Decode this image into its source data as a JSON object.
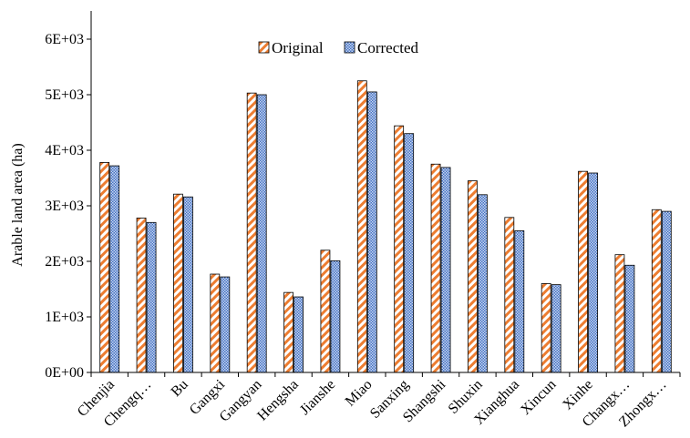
{
  "chart_data": {
    "type": "bar",
    "title": "",
    "xlabel": "",
    "ylabel": "Arable land area (ha)",
    "ylim": [
      0,
      6500
    ],
    "yticks": [
      {
        "value": 0,
        "label": "0E+00"
      },
      {
        "value": 1000,
        "label": "1E+03"
      },
      {
        "value": 2000,
        "label": "2E+03"
      },
      {
        "value": 3000,
        "label": "3E+03"
      },
      {
        "value": 4000,
        "label": "4E+03"
      },
      {
        "value": 5000,
        "label": "5E+03"
      },
      {
        "value": 6000,
        "label": "6E+03"
      }
    ],
    "categories": [
      "Chenjia",
      "Chengq…",
      "Bu",
      "Gangxi",
      "Gangyan",
      "Hengsha",
      "Jianshe",
      "Miao",
      "Sanxing",
      "Shangshi",
      "Shuxin",
      "Xianghua",
      "Xincun",
      "Xinhe",
      "Changx…",
      "Zhongx…"
    ],
    "series": [
      {
        "name": "Original",
        "color": "#ed7d31",
        "pattern": "diagonal-stripes",
        "values": [
          3780,
          2780,
          3210,
          1770,
          5030,
          1440,
          2200,
          5250,
          4440,
          3750,
          3450,
          2790,
          1600,
          3620,
          2120,
          2930
        ]
      },
      {
        "name": "Corrected",
        "color": "#4472c4",
        "pattern": "crosshatch",
        "values": [
          3720,
          2700,
          3160,
          1720,
          5000,
          1360,
          2010,
          5050,
          4300,
          3690,
          3200,
          2550,
          1580,
          3590,
          1930,
          2900
        ]
      }
    ],
    "grid": false,
    "legend": "top-center"
  }
}
